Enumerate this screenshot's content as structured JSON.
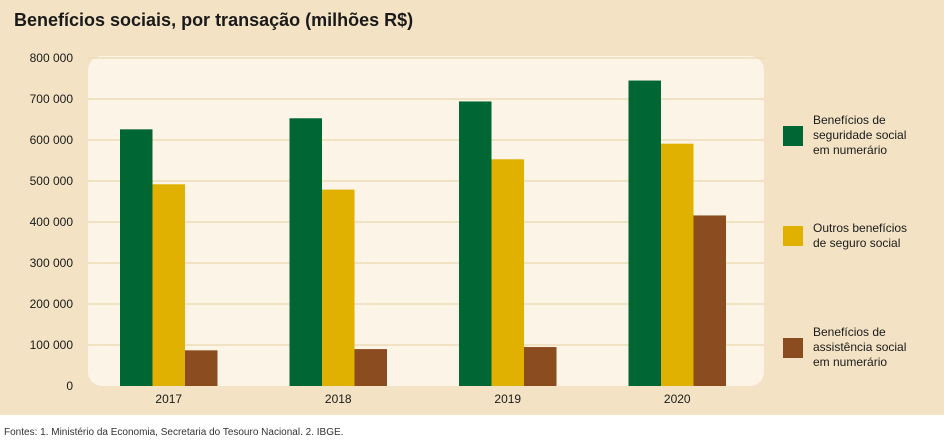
{
  "header": {
    "title": "Benefícios sociais, por transação (milhões R$)"
  },
  "footer": {
    "source": "Fontes: 1. Ministério da Economia, Secretaria do Tesouro Nacional. 2. IBGE."
  },
  "chart_data": {
    "type": "bar",
    "title": "Benefícios sociais, por transação (milhões R$)",
    "xlabel": "",
    "ylabel": "",
    "ylim": [
      0,
      800000
    ],
    "yticks": [
      0,
      100000,
      200000,
      300000,
      400000,
      500000,
      600000,
      700000,
      800000
    ],
    "ytick_labels": [
      "0",
      "100 000",
      "200 000",
      "300 000",
      "400 000",
      "500 000",
      "600 000",
      "700 000",
      "800 000"
    ],
    "categories": [
      "2017",
      "2018",
      "2019",
      "2020"
    ],
    "grid": true,
    "legend_position": "right",
    "series": [
      {
        "name": "Benefícios de seguridade social em numerário",
        "legend_lines": [
          "Benefícios de",
          "seguridade social",
          "em numerário"
        ],
        "color": "#006633",
        "values": [
          626000,
          653000,
          694000,
          745000
        ]
      },
      {
        "name": "Outros benefícios de seguro social",
        "legend_lines": [
          "Outros benefícios",
          "de seguro social"
        ],
        "color": "#e0b100",
        "values": [
          492000,
          479000,
          553000,
          591000
        ]
      },
      {
        "name": "Benefícios de assistência social em numerário",
        "legend_lines": [
          "Benefícios de",
          "assistência social",
          "em numerário"
        ],
        "color": "#8b4c1f",
        "values": [
          87000,
          90000,
          95000,
          416000
        ]
      }
    ]
  }
}
